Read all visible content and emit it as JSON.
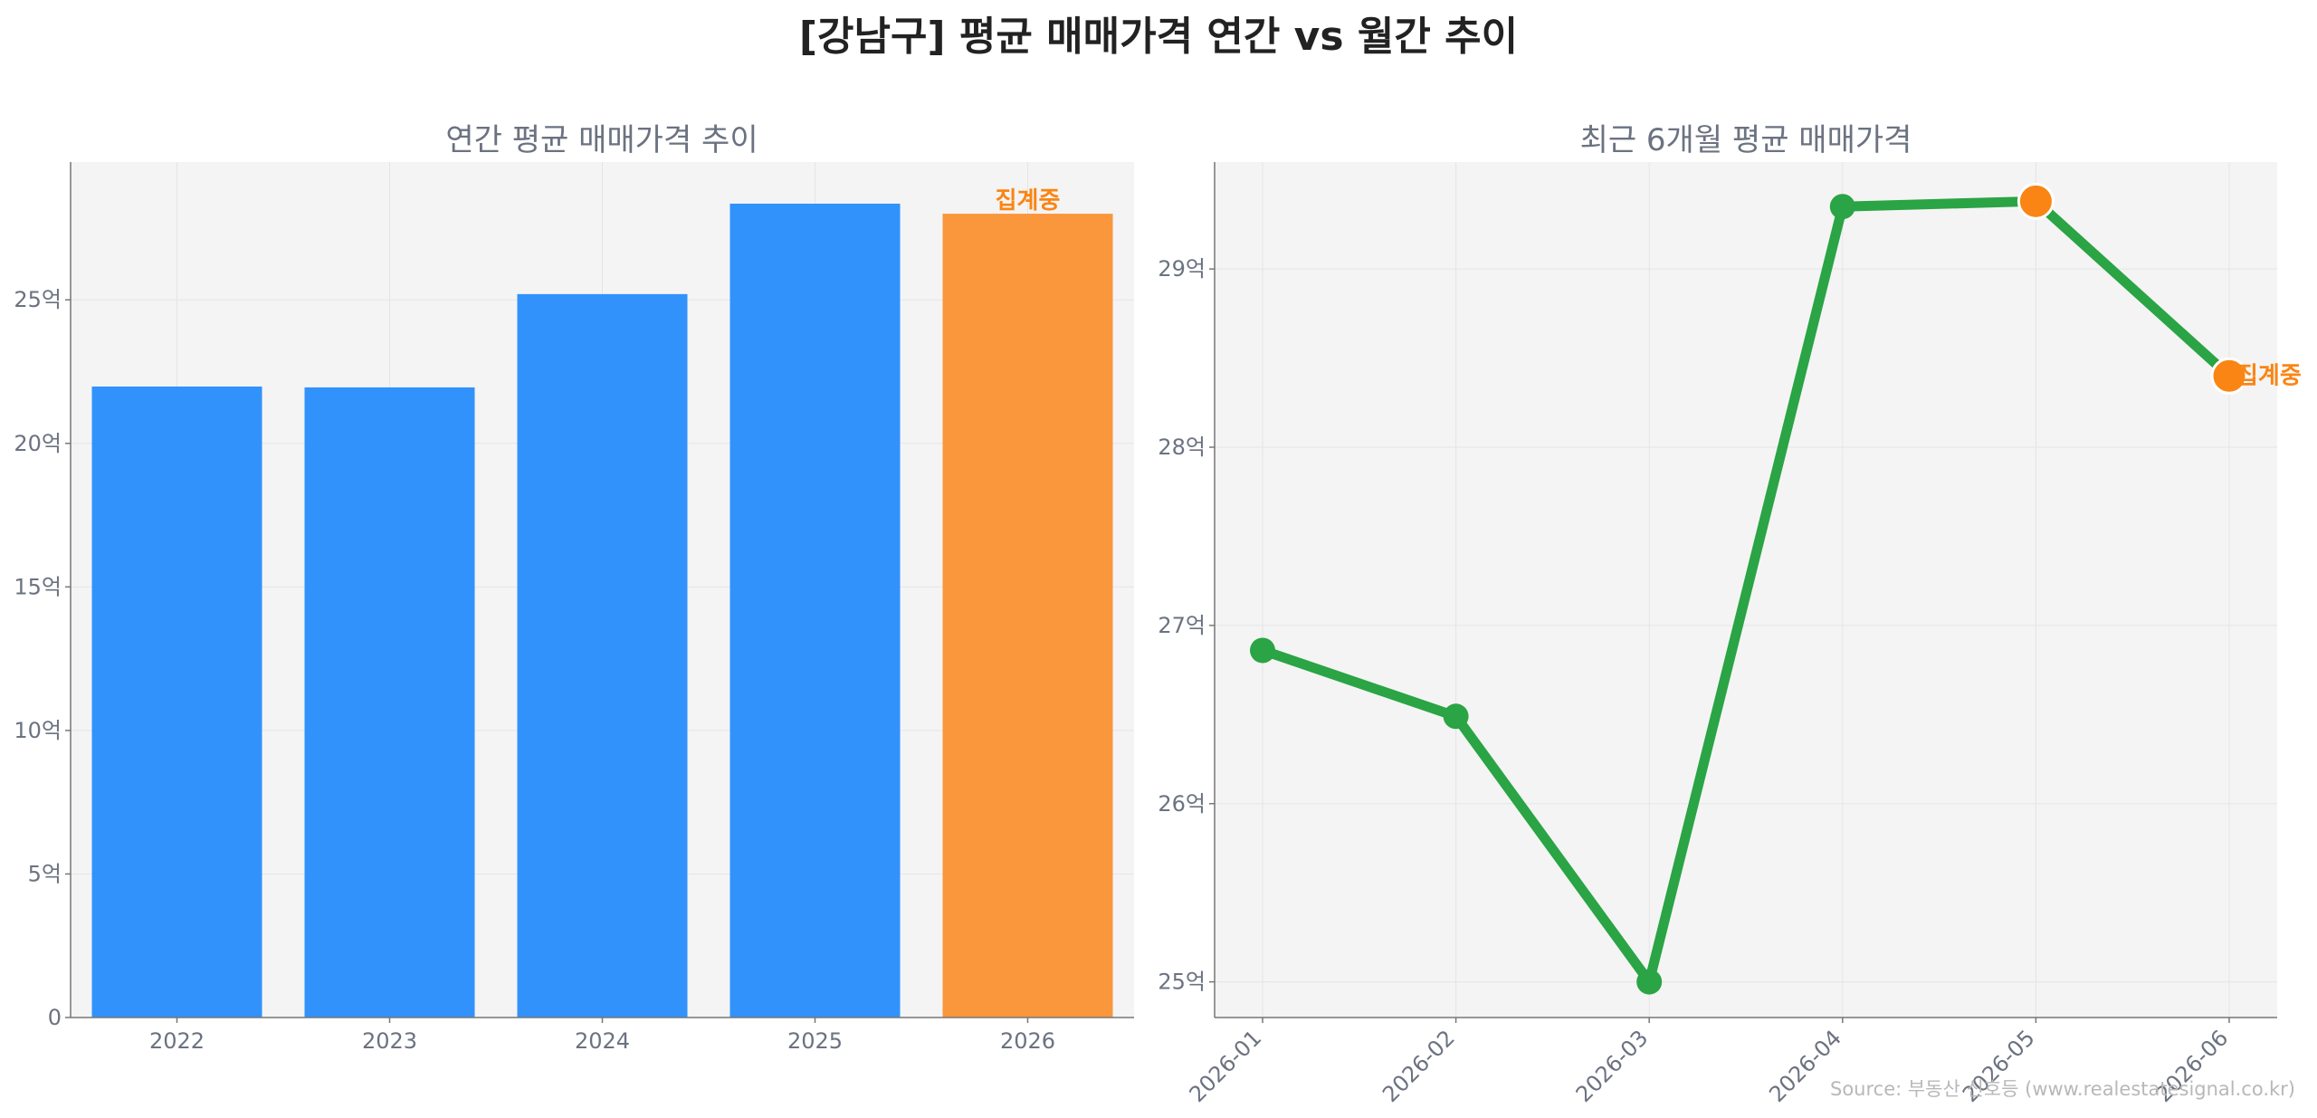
{
  "title": "[강남구] 평균 매매가격 연간 vs 월간 추이",
  "source": "Source: 부동산 신호등 (www.realestatesignal.co.kr)",
  "colors": {
    "bar": "#3192fc",
    "highlight": "#fa963c",
    "line": "#2aa444",
    "marker_highlight": "#fa8514",
    "plot_bg": "#f4f4f4",
    "grid": "#e5e5e5",
    "axis": "#777777"
  },
  "chart_data": [
    {
      "type": "bar",
      "title": "연간 평균 매매가격 추이",
      "categories": [
        "2022",
        "2023",
        "2024",
        "2025",
        "2026"
      ],
      "values": [
        21.98,
        21.95,
        25.2,
        28.35,
        28.0
      ],
      "highlight_index": 4,
      "annotation": {
        "index": 4,
        "text": "집계중"
      },
      "ylim": [
        0,
        29.8
      ],
      "yticks": [
        0,
        5,
        10,
        15,
        20,
        25
      ],
      "ytick_labels": [
        "0",
        "5억",
        "10억",
        "15억",
        "20억",
        "25억"
      ],
      "grid": true
    },
    {
      "type": "line",
      "title": "최근 6개월 평균 매매가격",
      "x": [
        "2026-01",
        "2026-02",
        "2026-03",
        "2026-04",
        "2026-05",
        "2026-06"
      ],
      "values": [
        26.86,
        26.49,
        25.0,
        29.35,
        29.38,
        28.4
      ],
      "highlight_indices": [
        4,
        5
      ],
      "annotation": {
        "index": 5,
        "text": "집계중"
      },
      "ylim": [
        24.8,
        29.6
      ],
      "yticks": [
        25,
        26,
        27,
        28,
        29
      ],
      "ytick_labels": [
        "25억",
        "26억",
        "27억",
        "28억",
        "29억"
      ],
      "grid": true
    }
  ]
}
